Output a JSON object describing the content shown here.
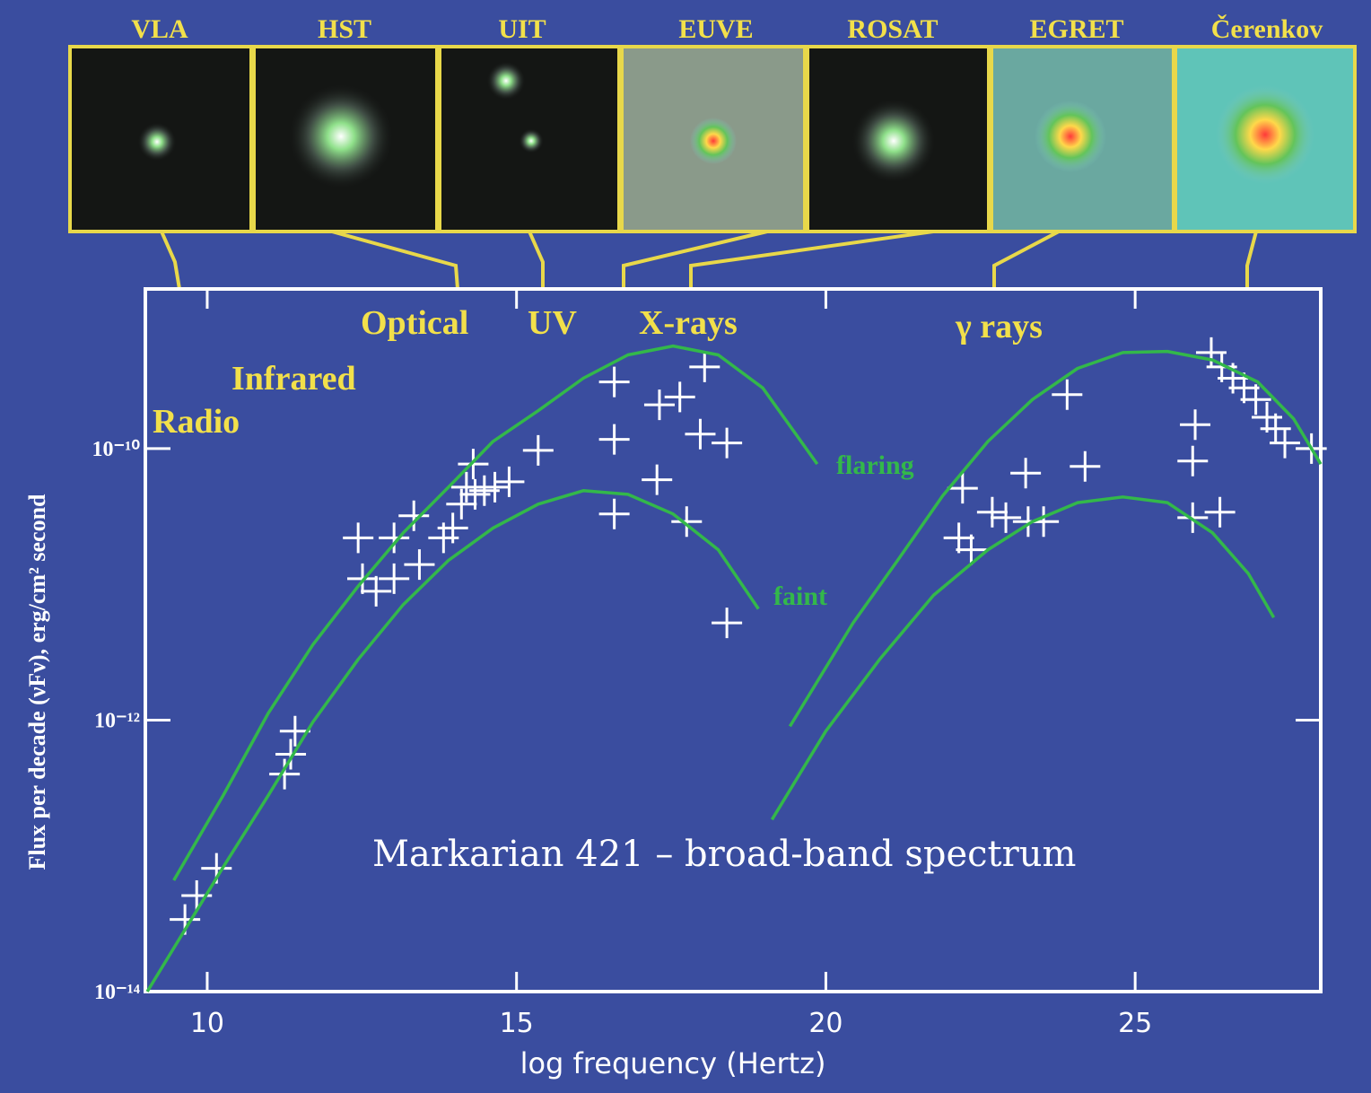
{
  "chart_data": {
    "type": "scatter",
    "title": "Markarian 421 – broad-band spectrum",
    "x_label": "log frequency (Hertz)",
    "y_label": "Flux per decade (νFν), erg/cm² second",
    "xlim": [
      9,
      28
    ],
    "xticks": [
      10,
      15,
      20,
      25
    ],
    "ylim": [
      1e-14,
      1.5e-09
    ],
    "yticks": [
      {
        "value": 1e-14,
        "label": "10⁻¹⁴"
      },
      {
        "value": 1e-12,
        "label": "10⁻¹²"
      },
      {
        "value": 1e-10,
        "label": "10⁻¹⁰"
      }
    ],
    "y_scale": "log",
    "bands": [
      "Radio",
      "Infrared",
      "Optical",
      "UV",
      "X-rays",
      "γ rays"
    ],
    "instruments": [
      "VLA",
      "HST",
      "UIT",
      "EUVE",
      "ROSAT",
      "EGRET",
      "Čerenkov"
    ],
    "series": [
      {
        "type": "scatter",
        "color": "#ffffff",
        "x": [
          9.64,
          9.83,
          10.15,
          11.25,
          11.35,
          11.42,
          12.44,
          12.51,
          12.73,
          13.02,
          13.02,
          13.34,
          13.43,
          13.82,
          13.97,
          14.11,
          14.19,
          14.33,
          14.3,
          14.48,
          14.65,
          14.88,
          15.35,
          16.58,
          16.58,
          16.58,
          17.27,
          17.31,
          17.64,
          17.75,
          18.04,
          17.97,
          18.4,
          18.4,
          22.21,
          22.15,
          22.35,
          22.69,
          22.91,
          23.23,
          23.27,
          23.52,
          23.9,
          24.19,
          25.93,
          25.93,
          26.37,
          25.97,
          26.23,
          26.4,
          26.58,
          26.76,
          26.95,
          27.13,
          27.27,
          27.42,
          27.85
        ],
        "values": [
          3.4e-14,
          5.1e-14,
          8.1e-14,
          4e-13,
          5.6e-13,
          8.3e-13,
          2.2e-11,
          1.1e-11,
          8.9e-12,
          1.1e-11,
          2.2e-11,
          3.2e-11,
          1.4e-11,
          2.2e-11,
          2.6e-11,
          3.9e-11,
          5.2e-11,
          4.6e-11,
          7.7e-11,
          4.9e-11,
          5.2e-11,
          5.7e-11,
          9.7e-11,
          3.1e-10,
          1.17e-10,
          3.3e-11,
          5.9e-11,
          2.1e-10,
          2.4e-10,
          2.9e-11,
          4e-10,
          1.28e-10,
          1.1e-10,
          5.2e-12,
          5.1e-11,
          2.2e-11,
          1.8e-11,
          3.4e-11,
          3.1e-11,
          6.6e-11,
          2.9e-11,
          2.9e-11,
          2.5e-10,
          7.4e-11,
          8.1e-11,
          3.1e-11,
          3.4e-11,
          1.5e-10,
          5.1e-10,
          4e-10,
          3.3e-10,
          2.8e-10,
          2.3e-10,
          1.7e-10,
          1.4e-10,
          1.1e-10,
          1e-10
        ]
      },
      {
        "type": "line",
        "name": "flaring",
        "color": "#33b84a",
        "x": [
          9.46,
          10.26,
          10.99,
          11.71,
          12.44,
          13.17,
          13.9,
          14.62,
          15.35,
          16.08,
          16.8,
          17.53,
          18.26,
          18.98,
          19.86,
          null,
          19.42,
          20.44,
          21.16,
          21.89,
          22.62,
          23.34,
          24.07,
          24.8,
          25.52,
          26.25,
          26.98,
          27.56,
          28.0
        ],
        "values": [
          6.6e-14,
          2.8e-13,
          1.13e-12,
          3.6e-12,
          9.7e-12,
          2.4e-11,
          5.2e-11,
          1.13e-10,
          1.9e-10,
          3.3e-10,
          4.9e-10,
          5.7e-10,
          4.9e-10,
          2.8e-10,
          7.7e-11,
          null,
          9e-13,
          5.2e-12,
          1.5e-11,
          4.5e-11,
          1.13e-10,
          2.3e-10,
          3.9e-10,
          5.1e-10,
          5.2e-10,
          4.5e-10,
          3.1e-10,
          1.66e-10,
          7.7e-11
        ]
      },
      {
        "type": "line",
        "name": "faint",
        "color": "#33b84a",
        "x": [
          9.03,
          10.26,
          10.99,
          11.71,
          12.44,
          13.17,
          13.9,
          14.62,
          15.35,
          16.08,
          16.8,
          17.53,
          18.26,
          18.91,
          null,
          19.13,
          20.0,
          20.87,
          21.74,
          22.62,
          23.34,
          24.07,
          24.8,
          25.52,
          26.25,
          26.83,
          27.24
        ],
        "values": [
          1e-14,
          8.3e-14,
          2.8e-13,
          9.7e-13,
          2.8e-12,
          7.1e-12,
          1.5e-11,
          2.6e-11,
          3.9e-11,
          4.9e-11,
          4.6e-11,
          3.3e-11,
          1.8e-11,
          6.6e-12,
          null,
          1.85e-13,
          8.3e-13,
          2.8e-12,
          8.3e-12,
          1.8e-11,
          2.9e-11,
          4e-11,
          4.4e-11,
          4e-11,
          2.4e-11,
          1.2e-11,
          5.7e-12
        ]
      }
    ]
  }
}
